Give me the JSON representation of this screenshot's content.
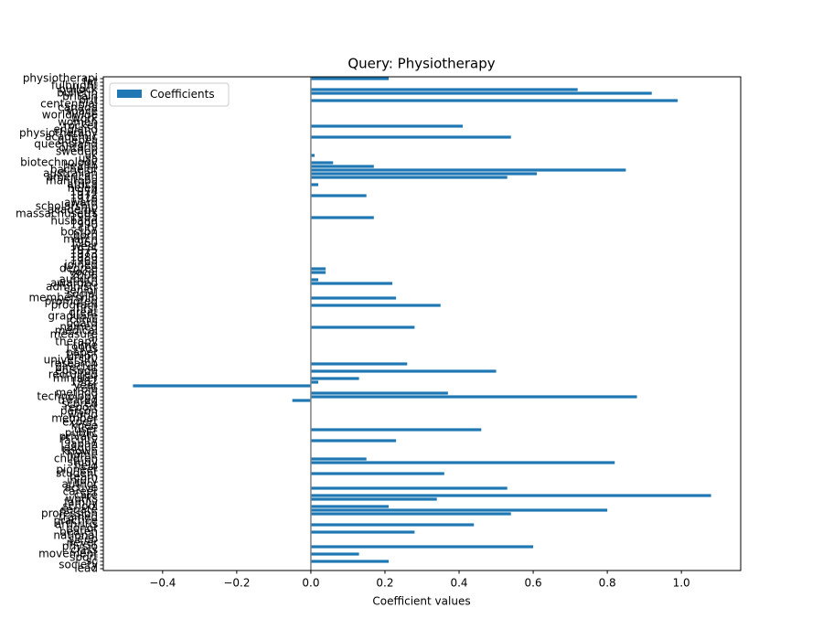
{
  "chart_data": {
    "type": "barh",
    "title": "Query: Physiotherapy",
    "xlabel": "Coefficient values",
    "legend": "upper left",
    "axvline": 0,
    "axvline_color": "#808080",
    "series": [
      {
        "name": "Coefficients",
        "color": "#1f77b4",
        "values": [
          0.21,
          0,
          0,
          0.72,
          0.92,
          0,
          0.99,
          0,
          0,
          0,
          0,
          0,
          0,
          0.41,
          0,
          0,
          0.54,
          0,
          0,
          0,
          0,
          0.01,
          0,
          0.06,
          0.17,
          0.85,
          0.61,
          0.53,
          0,
          0.02,
          0,
          0,
          0.15,
          0,
          0,
          0,
          0,
          0,
          0.17,
          0,
          0,
          0,
          0,
          0,
          0,
          0,
          0,
          0,
          0,
          0,
          0,
          0,
          0.04,
          0.04,
          0,
          0.02,
          0.22,
          0,
          0,
          0,
          0.23,
          0,
          0.35,
          0,
          0,
          0,
          0,
          0,
          0.28,
          0,
          0,
          0,
          0,
          0,
          0,
          0,
          0,
          0,
          0.26,
          0,
          0.5,
          0,
          0.13,
          0.02,
          -0.48,
          0,
          0.37,
          0.88,
          -0.05,
          0,
          0,
          0,
          0,
          0,
          0,
          0,
          0.46,
          0,
          0,
          0.23,
          0,
          0,
          0,
          0,
          0.15,
          0.82,
          0,
          0,
          0.36,
          0,
          0,
          0,
          0.53,
          0,
          1.08,
          0.34,
          0,
          0.21,
          0.8,
          0.54,
          0,
          0,
          0.44,
          0,
          0.28,
          0,
          0,
          0,
          0.6,
          0,
          0.13,
          0,
          0.21,
          0,
          0
        ]
      }
    ],
    "categories": [
      "physiotherapi",
      "fat",
      "fulbright",
      "bullock",
      "bulletin",
      "britain",
      "brit",
      "centennial",
      "canada",
      "space",
      "worldwide",
      "work",
      "women",
      "rocket",
      "england",
      "physiotherapy",
      "academic",
      "quebec",
      "queensland",
      "ontario",
      "sweden",
      "uk",
      "usa",
      "biotechnology",
      "health",
      "bachelor",
      "australian",
      "american",
      "manitoba",
      "africa",
      "helen",
      "1974",
      "1972",
      "1978",
      "award",
      "scholarship",
      "academy",
      "massachusetts",
      "1983",
      "husband",
      "1990",
      "city",
      "boston",
      "born",
      "march",
      "1960",
      "west",
      "1975",
      "1973",
      "1980",
      "1968",
      "joined",
      "degree",
      "vocal",
      "2006",
      "auburn",
      "awarded",
      "administr",
      "senior",
      "social",
      "membership",
      "promoted",
      "program",
      "first",
      "great",
      "graduate",
      "clinic",
      "board",
      "named",
      "medical",
      "measure",
      "ai",
      "therapy",
      "time",
      "1990s",
      "paper",
      "union",
      "university",
      "research",
      "director",
      "episode",
      "recruited",
      "minister",
      "1982",
      "year",
      "role",
      "method",
      "technology",
      "treated",
      "scored",
      "report",
      "person",
      "world",
      "member",
      "expert",
      "knee",
      "user",
      "public",
      "private",
      "faculty",
      "japan",
      "league",
      "known",
      "home",
      "children",
      "study",
      "field",
      "pioneer",
      "student",
      "team",
      "injury",
      "author",
      "active",
      "career",
      "care",
      "works",
      "family",
      "school",
      "senate",
      "profession",
      "trained",
      "practice",
      "arthritis",
      "honor",
      "beaten",
      "national",
      "sleep",
      "never",
      "physio",
      "class",
      "movement",
      "sport",
      "sc",
      "society",
      "lead"
    ],
    "xlim": [
      -0.56,
      1.16
    ],
    "xticks": [
      {
        "value": -0.4,
        "label": "−0.4"
      },
      {
        "value": -0.2,
        "label": "−0.2"
      },
      {
        "value": 0,
        "label": "0.0"
      },
      0.2,
      0.4,
      0.6,
      0.8,
      {
        "value": 1,
        "label": "1.0"
      }
    ]
  }
}
